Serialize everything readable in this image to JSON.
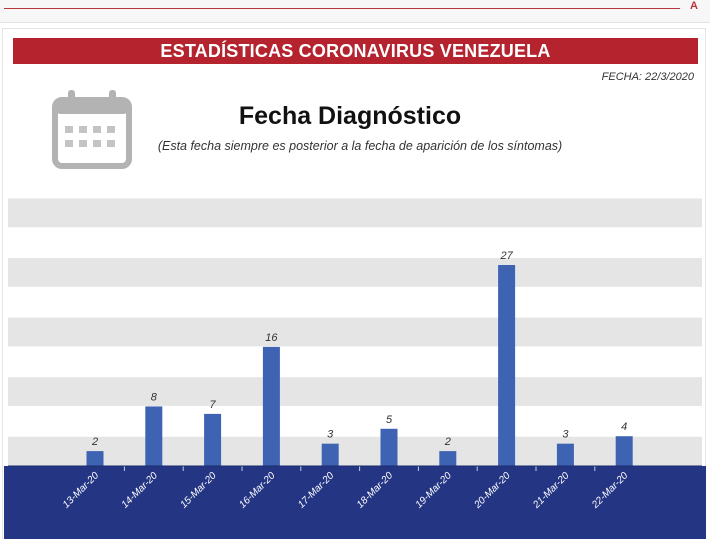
{
  "header": {
    "corner_mark": "A"
  },
  "banner": {
    "title": "ESTADÍSTICAS CORONAVIRUS VENEZUELA"
  },
  "meta": {
    "date": "FECHA: 22/3/2020"
  },
  "icons": {
    "calendar": "calendar-icon"
  },
  "colors": {
    "banner": "#b5232f",
    "bar": "#3e63b3",
    "axis_band": "#243584",
    "stripe": "#e5e5e5"
  },
  "chart_data": {
    "type": "bar",
    "title": "Fecha Diagnóstico",
    "subtitle": "(Esta fecha siempre es posterior a la fecha de aparición de los síntomas)",
    "categories": [
      "13-Mar-20",
      "14-Mar-20",
      "15-Mar-20",
      "16-Mar-20",
      "17-Mar-20",
      "18-Mar-20",
      "19-Mar-20",
      "20-Mar-20",
      "21-Mar-20",
      "22-Mar-20"
    ],
    "values": [
      2,
      8,
      7,
      16,
      3,
      5,
      2,
      27,
      3,
      4
    ],
    "ylim": [
      0,
      36
    ],
    "grid": true,
    "data_labels": true
  }
}
